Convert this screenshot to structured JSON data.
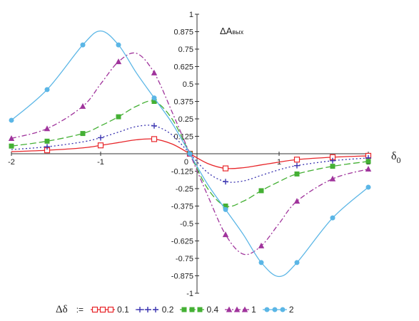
{
  "chart_data": {
    "type": "line",
    "ylabel_prefix": "ΔA",
    "ylabel_sub": "вых",
    "xlabel_main": "δ",
    "xlabel_sub": "0",
    "xlim": [
      -2,
      2
    ],
    "ylim": [
      -1,
      1
    ],
    "x_ticks": [
      "-2",
      "-1",
      "0",
      "1",
      "2"
    ],
    "y_ticks": [
      "1",
      "0.875",
      "0.75",
      "0.625",
      "0.5",
      "0.375",
      "0.25",
      "0.125",
      "0",
      "-0.125",
      "-0.25",
      "-0.375",
      "-0.5",
      "-0.625",
      "-0.75",
      "-0.875",
      "-1"
    ],
    "legend_title": "Δδ",
    "legend_assign": ":=",
    "series": [
      {
        "name": "0.1",
        "color": "#e8262a",
        "marker": "open-square",
        "dash": "",
        "x": [
          -2,
          -1.6,
          -1.2,
          -1,
          -0.8,
          -0.6,
          -0.4,
          -0.2,
          0,
          0.2,
          0.4,
          0.6,
          0.8,
          1,
          1.2,
          1.6,
          2
        ],
        "y": [
          0.015,
          0.025,
          0.042,
          0.06,
          0.08,
          0.1,
          0.105,
          0.07,
          0,
          -0.07,
          -0.105,
          -0.1,
          -0.08,
          -0.06,
          -0.042,
          -0.025,
          -0.015
        ],
        "markers_x": [
          -1.6,
          -1,
          -0.4,
          0,
          0.4,
          1.2,
          1.6,
          2
        ]
      },
      {
        "name": "0.2",
        "color": "#3a34b0",
        "marker": "plus",
        "dash": "2 3",
        "x": [
          -2,
          -1.6,
          -1.2,
          -1,
          -0.8,
          -0.6,
          -0.4,
          -0.2,
          0,
          0.2,
          0.4,
          0.6,
          0.8,
          1,
          1.2,
          1.6,
          2
        ],
        "y": [
          0.03,
          0.05,
          0.085,
          0.115,
          0.155,
          0.195,
          0.2,
          0.135,
          0,
          -0.135,
          -0.2,
          -0.195,
          -0.155,
          -0.115,
          -0.085,
          -0.05,
          -0.03
        ],
        "markers_x": [
          -1.6,
          -1,
          -0.4,
          0,
          0.4,
          1.2,
          1.6,
          2
        ]
      },
      {
        "name": "0.4",
        "color": "#44b034",
        "marker": "filled-square",
        "dash": "9 4",
        "x": [
          -2,
          -1.6,
          -1.2,
          -1,
          -0.8,
          -0.6,
          -0.4,
          -0.2,
          0,
          0.2,
          0.4,
          0.6,
          0.8,
          1,
          1.2,
          1.6,
          2
        ],
        "y": [
          0.055,
          0.09,
          0.145,
          0.2,
          0.265,
          0.34,
          0.375,
          0.25,
          0,
          -0.25,
          -0.375,
          -0.34,
          -0.265,
          -0.2,
          -0.145,
          -0.09,
          -0.055
        ],
        "markers_x": [
          -2,
          -1.6,
          -1.2,
          -0.8,
          -0.4,
          0,
          0.4,
          0.8,
          1.2,
          1.6,
          2
        ]
      },
      {
        "name": "1",
        "color": "#a0349c",
        "marker": "filled-triangle",
        "dash": "7 3 2 3",
        "x": [
          -2,
          -1.6,
          -1.2,
          -1,
          -0.8,
          -0.6,
          -0.4,
          -0.2,
          0,
          0.2,
          0.4,
          0.6,
          0.8,
          1,
          1.2,
          1.6,
          2
        ],
        "y": [
          0.11,
          0.18,
          0.34,
          0.5,
          0.66,
          0.72,
          0.58,
          0.3,
          0,
          -0.3,
          -0.58,
          -0.72,
          -0.66,
          -0.5,
          -0.34,
          -0.18,
          -0.11
        ],
        "markers_x": [
          -2,
          -1.6,
          -1.2,
          -0.8,
          -0.4,
          0,
          0.4,
          0.8,
          1.2,
          1.6,
          2
        ]
      },
      {
        "name": "2",
        "color": "#5bb6e6",
        "marker": "filled-circle",
        "dash": "",
        "x": [
          -2,
          -1.6,
          -1.2,
          -1,
          -0.8,
          -0.6,
          -0.4,
          -0.2,
          0,
          0.2,
          0.4,
          0.6,
          0.8,
          1,
          1.2,
          1.6,
          2
        ],
        "y": [
          0.24,
          0.46,
          0.78,
          0.88,
          0.78,
          0.58,
          0.4,
          0.22,
          0,
          -0.22,
          -0.4,
          -0.58,
          -0.78,
          -0.88,
          -0.78,
          -0.46,
          -0.24
        ],
        "markers_x": [
          -2,
          -1.6,
          -1.2,
          -0.8,
          -0.4,
          0,
          0.4,
          0.8,
          1.2,
          1.6,
          2
        ]
      }
    ]
  }
}
